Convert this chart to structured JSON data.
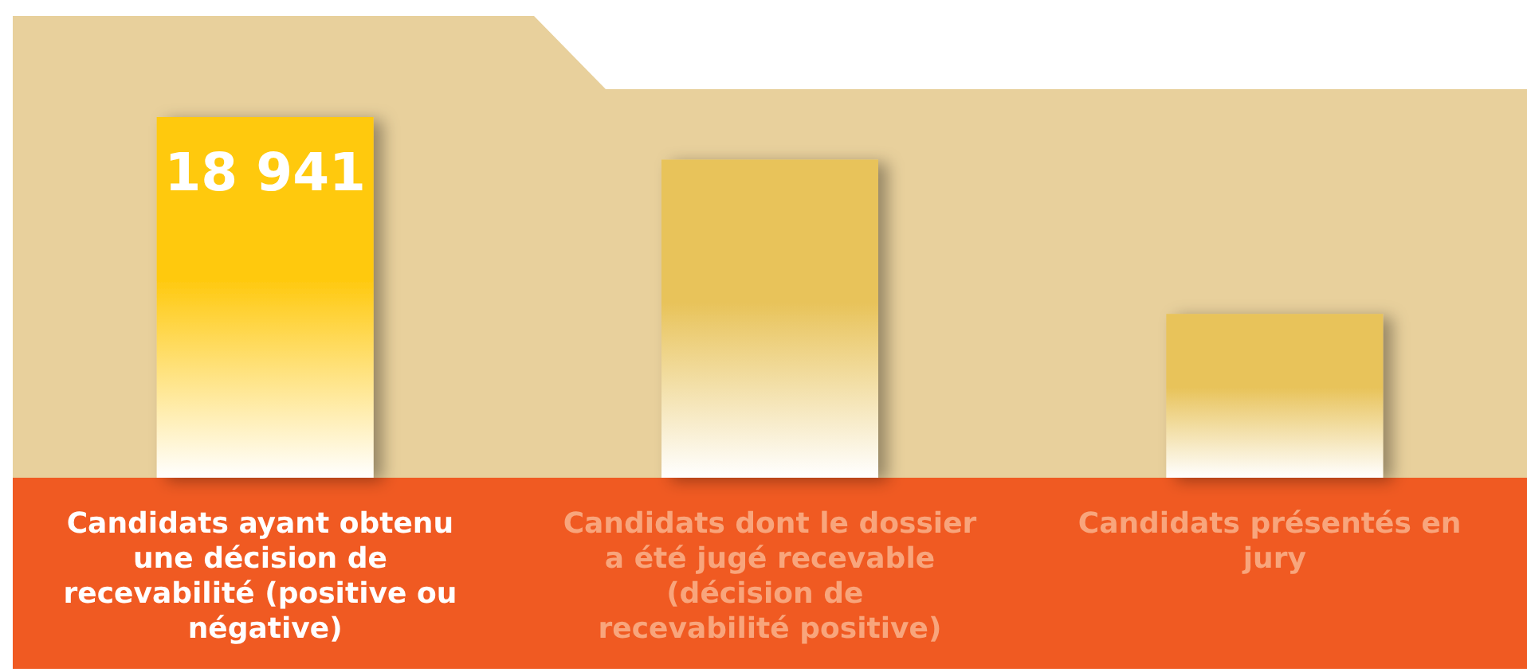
{
  "chart_data": {
    "type": "bar",
    "categories": [
      "Candidats ayant obtenu une décision de recevabilité (positive ou négative)",
      "Candidats dont le dossier a été jugé recevable (décision de recevabilité positive)",
      "Candidats présentés en jury"
    ],
    "values": [
      18941,
      16700,
      8600
    ],
    "colors": [
      "#ffc90e",
      "#e8c35a",
      "#e8c35a"
    ],
    "value_labels": [
      "18 941",
      null,
      null
    ],
    "tick_labels": "x"
  }
}
